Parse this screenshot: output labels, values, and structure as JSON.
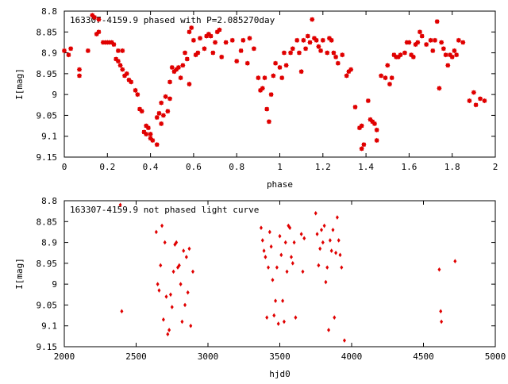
{
  "chart_data": [
    {
      "type": "scatter",
      "title": "163307-4159.9 phased with P=2.085270day",
      "xlabel": "phase",
      "ylabel": "I[mag]",
      "xlim": [
        0,
        2
      ],
      "ylim": [
        9.15,
        8.8
      ],
      "y_inverted": true,
      "xticks": [
        "0",
        "0.2",
        "0.4",
        "0.6",
        "0.8",
        "1",
        "1.2",
        "1.4",
        "1.6",
        "1.8",
        "2"
      ],
      "yticks": [
        "8.8",
        "8.85",
        "8.9",
        "8.95",
        "9",
        "9.05",
        "9.1",
        "9.15"
      ],
      "color": "#e00000",
      "points": [
        [
          0.0,
          8.895
        ],
        [
          0.02,
          8.905
        ],
        [
          0.03,
          8.89
        ],
        [
          0.07,
          8.94
        ],
        [
          0.07,
          8.955
        ],
        [
          0.11,
          8.895
        ],
        [
          0.13,
          8.81
        ],
        [
          0.14,
          8.815
        ],
        [
          0.15,
          8.855
        ],
        [
          0.16,
          8.85
        ],
        [
          0.16,
          8.82
        ],
        [
          0.18,
          8.875
        ],
        [
          0.19,
          8.875
        ],
        [
          0.2,
          8.875
        ],
        [
          0.21,
          8.875
        ],
        [
          0.22,
          8.875
        ],
        [
          0.23,
          8.88
        ],
        [
          0.24,
          8.915
        ],
        [
          0.25,
          8.895
        ],
        [
          0.25,
          8.92
        ],
        [
          0.26,
          8.93
        ],
        [
          0.27,
          8.895
        ],
        [
          0.27,
          8.94
        ],
        [
          0.28,
          8.955
        ],
        [
          0.29,
          8.95
        ],
        [
          0.3,
          8.965
        ],
        [
          0.31,
          8.97
        ],
        [
          0.33,
          8.99
        ],
        [
          0.34,
          9.0
        ],
        [
          0.35,
          9.035
        ],
        [
          0.36,
          9.04
        ],
        [
          0.37,
          9.09
        ],
        [
          0.38,
          9.095
        ],
        [
          0.38,
          9.075
        ],
        [
          0.39,
          9.08
        ],
        [
          0.4,
          9.095
        ],
        [
          0.4,
          9.105
        ],
        [
          0.41,
          9.11
        ],
        [
          0.43,
          9.12
        ],
        [
          0.43,
          9.055
        ],
        [
          0.44,
          9.045
        ],
        [
          0.45,
          9.07
        ],
        [
          0.45,
          9.02
        ],
        [
          0.46,
          9.05
        ],
        [
          0.47,
          9.005
        ],
        [
          0.48,
          9.04
        ],
        [
          0.49,
          9.01
        ],
        [
          0.49,
          8.97
        ],
        [
          0.5,
          8.935
        ],
        [
          0.51,
          8.945
        ],
        [
          0.52,
          8.94
        ],
        [
          0.53,
          8.935
        ],
        [
          0.54,
          8.96
        ],
        [
          0.55,
          8.93
        ],
        [
          0.56,
          8.9
        ],
        [
          0.57,
          8.915
        ],
        [
          0.58,
          8.975
        ],
        [
          0.58,
          8.85
        ],
        [
          0.59,
          8.84
        ],
        [
          0.6,
          8.87
        ],
        [
          0.61,
          8.905
        ],
        [
          0.62,
          8.9
        ],
        [
          0.63,
          8.865
        ],
        [
          0.65,
          8.89
        ],
        [
          0.66,
          8.86
        ],
        [
          0.67,
          8.855
        ],
        [
          0.68,
          8.86
        ],
        [
          0.69,
          8.9
        ],
        [
          0.7,
          8.875
        ],
        [
          0.71,
          8.85
        ],
        [
          0.72,
          8.845
        ],
        [
          0.73,
          8.91
        ],
        [
          0.75,
          8.875
        ],
        [
          0.78,
          8.87
        ],
        [
          0.8,
          8.92
        ],
        [
          0.82,
          8.895
        ],
        [
          0.83,
          8.87
        ],
        [
          0.85,
          8.925
        ],
        [
          0.86,
          8.865
        ],
        [
          0.88,
          8.89
        ],
        [
          0.9,
          8.96
        ],
        [
          0.91,
          8.99
        ],
        [
          0.92,
          8.985
        ],
        [
          0.93,
          8.96
        ],
        [
          0.94,
          9.035
        ],
        [
          0.95,
          9.065
        ],
        [
          0.96,
          9.0
        ],
        [
          0.97,
          8.955
        ],
        [
          0.98,
          8.925
        ],
        [
          1.0,
          8.935
        ],
        [
          1.01,
          8.96
        ],
        [
          1.02,
          8.9
        ],
        [
          1.03,
          8.93
        ],
        [
          1.05,
          8.9
        ],
        [
          1.06,
          8.89
        ],
        [
          1.08,
          8.87
        ],
        [
          1.09,
          8.9
        ],
        [
          1.1,
          8.945
        ],
        [
          1.11,
          8.87
        ],
        [
          1.12,
          8.89
        ],
        [
          1.13,
          8.86
        ],
        [
          1.14,
          8.875
        ],
        [
          1.15,
          8.82
        ],
        [
          1.16,
          8.865
        ],
        [
          1.17,
          8.87
        ],
        [
          1.18,
          8.885
        ],
        [
          1.19,
          8.895
        ],
        [
          1.2,
          8.87
        ],
        [
          1.22,
          8.9
        ],
        [
          1.23,
          8.865
        ],
        [
          1.24,
          8.87
        ],
        [
          1.25,
          8.9
        ],
        [
          1.26,
          8.91
        ],
        [
          1.27,
          8.925
        ],
        [
          1.29,
          8.905
        ],
        [
          1.31,
          8.955
        ],
        [
          1.32,
          8.945
        ],
        [
          1.33,
          8.94
        ],
        [
          1.35,
          9.03
        ],
        [
          1.37,
          9.08
        ],
        [
          1.38,
          9.075
        ],
        [
          1.38,
          9.13
        ],
        [
          1.39,
          9.12
        ],
        [
          1.41,
          9.015
        ],
        [
          1.42,
          9.06
        ],
        [
          1.43,
          9.065
        ],
        [
          1.44,
          9.07
        ],
        [
          1.45,
          9.085
        ],
        [
          1.45,
          9.11
        ],
        [
          1.47,
          8.955
        ],
        [
          1.49,
          8.96
        ],
        [
          1.5,
          8.93
        ],
        [
          1.51,
          8.975
        ],
        [
          1.52,
          8.96
        ],
        [
          1.53,
          8.905
        ],
        [
          1.54,
          8.91
        ],
        [
          1.55,
          8.91
        ],
        [
          1.56,
          8.905
        ],
        [
          1.58,
          8.9
        ],
        [
          1.59,
          8.875
        ],
        [
          1.6,
          8.875
        ],
        [
          1.61,
          8.905
        ],
        [
          1.62,
          8.91
        ],
        [
          1.63,
          8.88
        ],
        [
          1.64,
          8.875
        ],
        [
          1.65,
          8.85
        ],
        [
          1.66,
          8.86
        ],
        [
          1.68,
          8.88
        ],
        [
          1.7,
          8.87
        ],
        [
          1.71,
          8.895
        ],
        [
          1.72,
          8.87
        ],
        [
          1.73,
          8.825
        ],
        [
          1.74,
          8.985
        ],
        [
          1.75,
          8.875
        ],
        [
          1.76,
          8.89
        ],
        [
          1.77,
          8.905
        ],
        [
          1.78,
          8.93
        ],
        [
          1.79,
          8.905
        ],
        [
          1.8,
          8.91
        ],
        [
          1.81,
          8.895
        ],
        [
          1.82,
          8.905
        ],
        [
          1.83,
          8.87
        ],
        [
          1.85,
          8.875
        ],
        [
          1.88,
          9.015
        ],
        [
          1.9,
          8.995
        ],
        [
          1.91,
          9.025
        ],
        [
          1.93,
          9.01
        ],
        [
          1.95,
          9.015
        ]
      ]
    },
    {
      "type": "scatter",
      "title": "163307-4159.9 not phased light curve",
      "xlabel": "hjd0",
      "ylabel": "I[mag]",
      "xlim": [
        2000,
        5000
      ],
      "ylim": [
        9.15,
        8.8
      ],
      "y_inverted": true,
      "xticks": [
        "2000",
        "2500",
        "3000",
        "3500",
        "4000",
        "4500",
        "5000"
      ],
      "yticks": [
        "8.8",
        "8.85",
        "8.9",
        "8.95",
        "9",
        "9.05",
        "9.1",
        "9.15"
      ],
      "color": "#e00000",
      "points": [
        [
          2390,
          8.81
        ],
        [
          2400,
          9.065
        ],
        [
          2640,
          8.875
        ],
        [
          2650,
          9.0
        ],
        [
          2660,
          9.015
        ],
        [
          2670,
          8.955
        ],
        [
          2680,
          8.86
        ],
        [
          2690,
          9.085
        ],
        [
          2700,
          8.9
        ],
        [
          2710,
          9.03
        ],
        [
          2720,
          9.12
        ],
        [
          2730,
          9.11
        ],
        [
          2740,
          9.025
        ],
        [
          2750,
          9.055
        ],
        [
          2760,
          8.97
        ],
        [
          2770,
          8.905
        ],
        [
          2780,
          8.9
        ],
        [
          2790,
          8.96
        ],
        [
          2800,
          8.955
        ],
        [
          2810,
          9.0
        ],
        [
          2820,
          9.09
        ],
        [
          2830,
          8.92
        ],
        [
          2840,
          9.05
        ],
        [
          2850,
          8.935
        ],
        [
          2860,
          9.02
        ],
        [
          2870,
          8.915
        ],
        [
          2880,
          9.1
        ],
        [
          2895,
          8.97
        ],
        [
          3370,
          8.865
        ],
        [
          3380,
          8.895
        ],
        [
          3390,
          8.92
        ],
        [
          3400,
          8.935
        ],
        [
          3410,
          9.08
        ],
        [
          3420,
          8.96
        ],
        [
          3430,
          8.875
        ],
        [
          3440,
          8.91
        ],
        [
          3450,
          8.99
        ],
        [
          3460,
          9.075
        ],
        [
          3470,
          9.04
        ],
        [
          3480,
          8.96
        ],
        [
          3490,
          9.095
        ],
        [
          3500,
          8.885
        ],
        [
          3510,
          8.93
        ],
        [
          3520,
          9.04
        ],
        [
          3530,
          9.09
        ],
        [
          3540,
          8.9
        ],
        [
          3550,
          8.97
        ],
        [
          3560,
          8.86
        ],
        [
          3570,
          8.865
        ],
        [
          3580,
          8.935
        ],
        [
          3590,
          8.95
        ],
        [
          3600,
          8.9
        ],
        [
          3610,
          9.08
        ],
        [
          3650,
          8.88
        ],
        [
          3660,
          8.97
        ],
        [
          3670,
          8.89
        ],
        [
          3750,
          8.83
        ],
        [
          3760,
          8.88
        ],
        [
          3770,
          8.955
        ],
        [
          3780,
          8.915
        ],
        [
          3790,
          8.87
        ],
        [
          3800,
          8.9
        ],
        [
          3810,
          8.86
        ],
        [
          3820,
          8.995
        ],
        [
          3830,
          8.96
        ],
        [
          3840,
          9.11
        ],
        [
          3850,
          8.895
        ],
        [
          3860,
          8.92
        ],
        [
          3870,
          8.87
        ],
        [
          3880,
          9.08
        ],
        [
          3890,
          8.925
        ],
        [
          3900,
          8.84
        ],
        [
          3910,
          8.895
        ],
        [
          3920,
          8.93
        ],
        [
          3930,
          8.96
        ],
        [
          3950,
          9.135
        ],
        [
          4610,
          8.965
        ],
        [
          4620,
          9.065
        ],
        [
          4625,
          9.09
        ],
        [
          4720,
          8.945
        ]
      ]
    }
  ]
}
